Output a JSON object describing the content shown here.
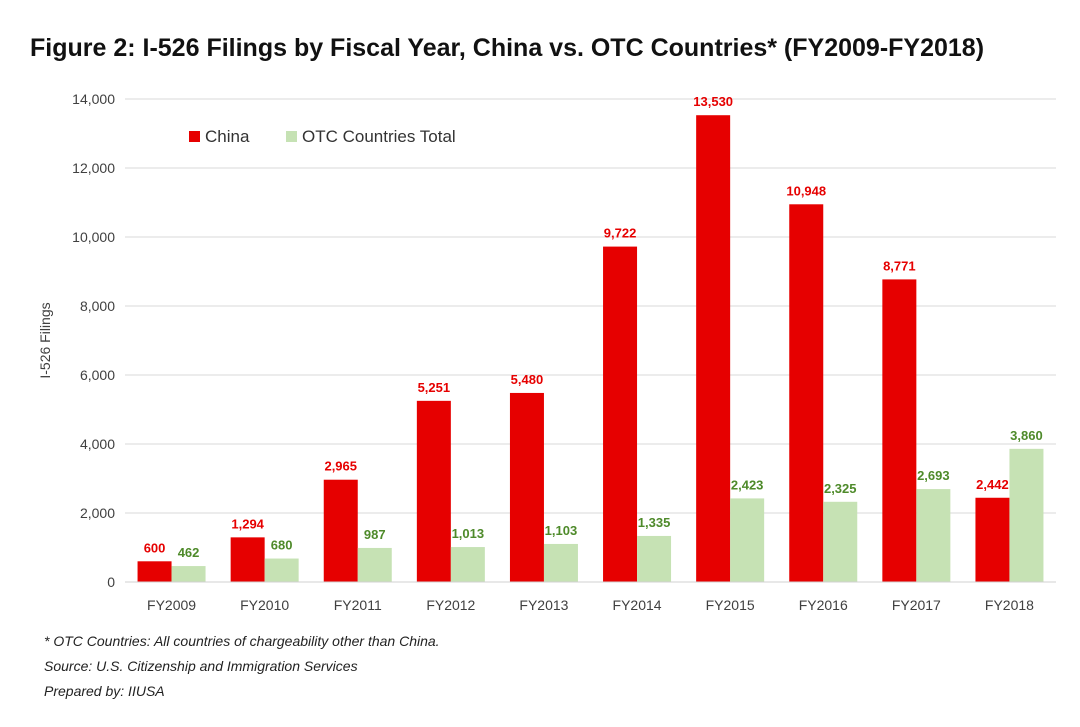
{
  "chart_data": {
    "type": "bar",
    "title": "Figure 2: I-526 Filings by Fiscal Year, China vs. OTC Countries* (FY2009-FY2018)",
    "ylabel": "I-526 Filings",
    "xlabel": "",
    "ylim": [
      0,
      14000
    ],
    "yticks": [
      0,
      2000,
      4000,
      6000,
      8000,
      10000,
      12000,
      14000
    ],
    "ytick_labels": [
      "0",
      "2,000",
      "4,000",
      "6,000",
      "8,000",
      "10,000",
      "12,000",
      "14,000"
    ],
    "grid": true,
    "legend_position": "top-left",
    "categories": [
      "FY2009",
      "FY2010",
      "FY2011",
      "FY2012",
      "FY2013",
      "FY2014",
      "FY2015",
      "FY2016",
      "FY2017",
      "FY2018"
    ],
    "series": [
      {
        "name": "China",
        "color": "#e60000",
        "label_color": "#e60000",
        "values": [
          600,
          1294,
          2965,
          5251,
          5480,
          9722,
          13530,
          10948,
          8771,
          2442
        ],
        "labels": [
          "600",
          "1,294",
          "2,965",
          "5,251",
          "5,480",
          "9,722",
          "13,530",
          "10,948",
          "8,771",
          "2,442"
        ]
      },
      {
        "name": "OTC Countries Total",
        "color": "#c6e2b4",
        "label_color": "#4e8a2a",
        "values": [
          462,
          680,
          987,
          1013,
          1103,
          1335,
          2423,
          2325,
          2693,
          3860
        ],
        "labels": [
          "462",
          "680",
          "987",
          "1,013",
          "1,103",
          "1,335",
          "2,423",
          "2,325",
          "2,693",
          "3,860"
        ]
      }
    ]
  },
  "footnotes": [
    "* OTC Countries: All countries of chargeability other than China.",
    "Source: U.S. Citizenship and Immigration Services",
    "Prepared by: IIUSA"
  ]
}
